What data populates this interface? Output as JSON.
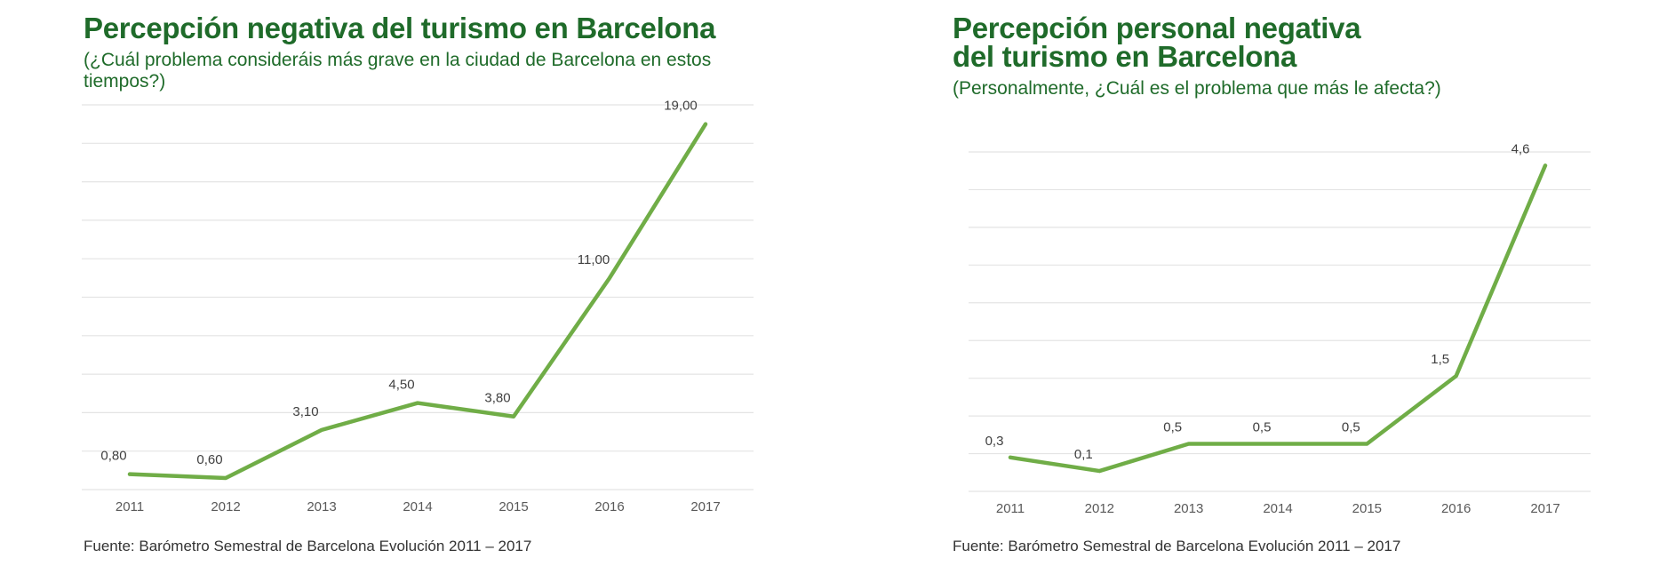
{
  "charts": [
    {
      "title": "Percepción negativa del turismo en Barcelona",
      "subtitle": "(¿Cuál problema consideráis más grave en la ciudad de Barcelona en estos tiempos?)",
      "source": "Fuente: Barómetro Semestral de Barcelona Evolución 2011 – 2017"
    },
    {
      "title_line1": "Percepción personal negativa",
      "title_line2": "del turismo en Barcelona",
      "subtitle": "(Personalmente, ¿Cuál es el problema que más le afecta?)",
      "source": "Fuente: Barómetro Semestral de Barcelona Evolución 2011 – 2017"
    }
  ],
  "colors": {
    "line": "#70ad47",
    "title": "#1f6b2a",
    "grid": "#e4e4e4"
  },
  "chart_data": [
    {
      "type": "line",
      "title": "Percepción negativa del turismo en Barcelona",
      "categories": [
        "2011",
        "2012",
        "2013",
        "2014",
        "2015",
        "2016",
        "2017"
      ],
      "values": [
        0.8,
        0.6,
        3.1,
        4.5,
        3.8,
        11.0,
        19.0
      ],
      "data_labels": [
        "0,80",
        "0,60",
        "3,10",
        "4,50",
        "3,80",
        "11,00",
        "19,00"
      ],
      "ylim": [
        0,
        20
      ],
      "grid": true,
      "legend": "none"
    },
    {
      "type": "line",
      "title": "Percepción personal negativa del turismo en Barcelona",
      "categories": [
        "2011",
        "2012",
        "2013",
        "2014",
        "2015",
        "2016",
        "2017"
      ],
      "values": [
        0.3,
        0.1,
        0.5,
        0.5,
        0.5,
        1.5,
        4.6
      ],
      "data_labels": [
        "0,3",
        "0,1",
        "0,5",
        "0,5",
        "0,5",
        "1,5",
        "4,6"
      ],
      "ylim": [
        -0.2,
        4.8
      ],
      "grid": true,
      "legend": "none"
    }
  ]
}
